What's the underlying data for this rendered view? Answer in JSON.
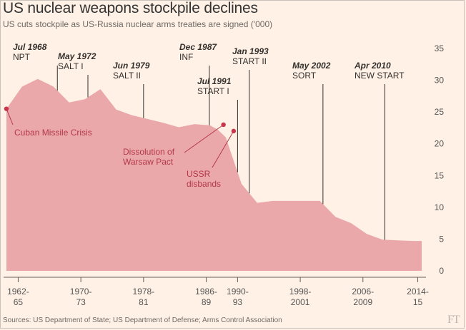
{
  "title": "US nuclear weapons stockpile declines",
  "subtitle": "US cuts stockpile as US-Russia nuclear arms treaties are signed ('000)",
  "source": "Sources: US Department of State; US Department of Defense; Arms Control Association",
  "logo": "FT",
  "colors": {
    "background": "#fff1e5",
    "area": "#eba8aa",
    "annotation": "#b2384a",
    "marker": "#c7364a"
  },
  "chart_data": {
    "type": "area",
    "title": "US nuclear weapons stockpile declines",
    "subtitle": "US cuts stockpile as US-Russia nuclear arms treaties are signed ('000)",
    "ylim": [
      0,
      35
    ],
    "y_ticks": [
      0,
      5,
      10,
      15,
      20,
      25,
      30,
      35
    ],
    "y_axis_position": "right",
    "grid": false,
    "x_ticks": [
      {
        "x": 1963.5,
        "line1": "1962-",
        "line2": "65"
      },
      {
        "x": 1971.5,
        "line1": "1970-",
        "line2": "73"
      },
      {
        "x": 1979.5,
        "line1": "1978-",
        "line2": "81"
      },
      {
        "x": 1987.5,
        "line1": "1986-",
        "line2": "89"
      },
      {
        "x": 1991.5,
        "line1": "1990-",
        "line2": "93"
      },
      {
        "x": 1999.5,
        "line1": "1998-",
        "line2": "2001"
      },
      {
        "x": 2007.5,
        "line1": "2006-",
        "line2": "2009"
      },
      {
        "x": 2014.5,
        "line1": "2014-",
        "line2": "15"
      }
    ],
    "x": [
      1962,
      1964,
      1966,
      1968,
      1970,
      1972,
      1974,
      1976,
      1978,
      1980,
      1982,
      1984,
      1986,
      1987,
      1988,
      1989,
      1990,
      1992,
      1994,
      1996,
      1998,
      2000,
      2002,
      2004,
      2006,
      2008,
      2010,
      2012,
      2014,
      2015
    ],
    "values": [
      25.5,
      29.0,
      30.2,
      29.0,
      26.5,
      27.0,
      28.6,
      25.4,
      24.5,
      23.9,
      23.3,
      22.6,
      23.1,
      23.0,
      22.9,
      22.2,
      21.0,
      13.7,
      10.7,
      11.0,
      11.0,
      11.0,
      11.0,
      8.5,
      7.5,
      5.8,
      4.9,
      4.8,
      4.7,
      4.7
    ],
    "events": [
      {
        "date": "Jul 1968",
        "name": "NPT",
        "x": 1968.5
      },
      {
        "date": "May 1972",
        "name": "SALT I",
        "x": 1972.4
      },
      {
        "date": "Jun 1979",
        "name": "SALT II",
        "x": 1979.5
      },
      {
        "date": "Dec 1987",
        "name": "INF",
        "x": 1987.9
      },
      {
        "date": "Jul 1991",
        "name": "START I",
        "x": 1991.5
      },
      {
        "date": "Jan 1993",
        "name": "START II",
        "x": 1993.0
      },
      {
        "date": "May 2002",
        "name": "SORT",
        "x": 2002.4
      },
      {
        "date": "Apr 2010",
        "name": "NEW START",
        "x": 2010.3
      }
    ],
    "annotations": [
      {
        "lines": [
          "Cuban Missile Crisis"
        ],
        "x": 1962.0,
        "y": 25.5
      },
      {
        "lines": [
          "Dissolution of",
          "Warsaw Pact"
        ],
        "x": 1989.7,
        "y": 23.0
      },
      {
        "lines": [
          "USSR",
          "disbands"
        ],
        "x": 1991.0,
        "y": 22.0
      }
    ]
  }
}
